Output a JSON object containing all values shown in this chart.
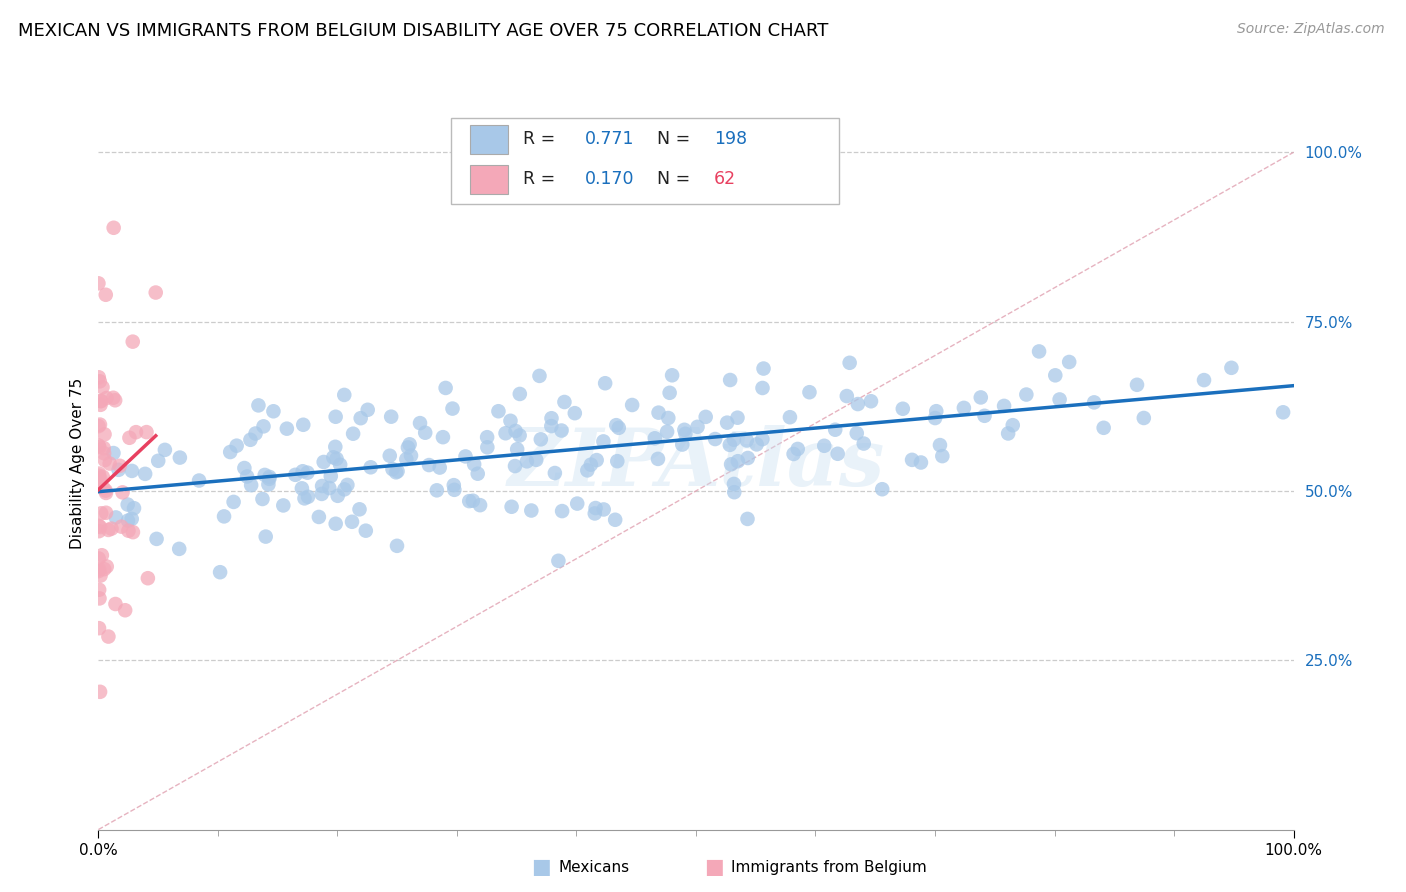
{
  "title": "MEXICAN VS IMMIGRANTS FROM BELGIUM DISABILITY AGE OVER 75 CORRELATION CHART",
  "source": "Source: ZipAtlas.com",
  "ylabel": "Disability Age Over 75",
  "xlim": [
    0,
    1
  ],
  "ylim": [
    0.0,
    1.08
  ],
  "y_tick_labels": [
    "25.0%",
    "50.0%",
    "75.0%",
    "100.0%"
  ],
  "y_tick_positions": [
    0.25,
    0.5,
    0.75,
    1.0
  ],
  "blue_R": 0.771,
  "blue_N": 198,
  "pink_R": 0.17,
  "pink_N": 62,
  "blue_color": "#a8c8e8",
  "pink_color": "#f4a8b8",
  "blue_line_color": "#1a6fbd",
  "pink_line_color": "#e84060",
  "diagonal_color": "#e0a0b0",
  "watermark": "ZIPAtlas",
  "title_fontsize": 13,
  "axis_label_fontsize": 11,
  "tick_fontsize": 11,
  "source_fontsize": 10
}
